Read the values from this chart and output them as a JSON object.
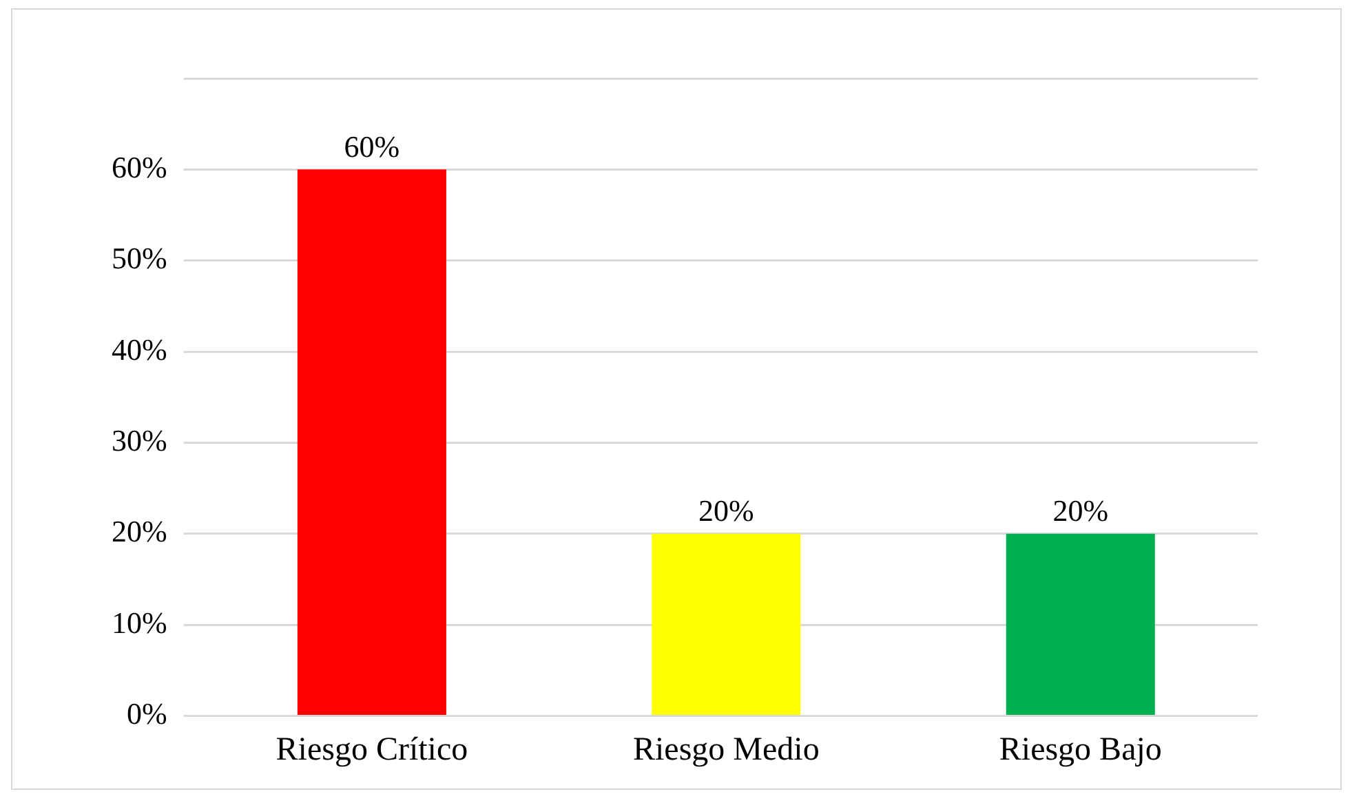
{
  "chart_data": {
    "type": "bar",
    "categories": [
      "Riesgo Crítico",
      "Riesgo Medio",
      "Riesgo Bajo"
    ],
    "values": [
      60,
      20,
      20
    ],
    "colors": [
      "#ff0000",
      "#ffff00",
      "#00b050"
    ],
    "value_labels": [
      "60%",
      "20%",
      "20%"
    ],
    "ylim": [
      0,
      70
    ],
    "yticks": [
      {
        "value": 0,
        "label": "0%"
      },
      {
        "value": 10,
        "label": "10%"
      },
      {
        "value": 20,
        "label": "20%"
      },
      {
        "value": 30,
        "label": "30%"
      },
      {
        "value": 40,
        "label": "40%"
      },
      {
        "value": 50,
        "label": "50%"
      },
      {
        "value": 60,
        "label": "60%"
      },
      {
        "value": 70,
        "label": null
      }
    ],
    "grid": "y",
    "legend": false
  }
}
